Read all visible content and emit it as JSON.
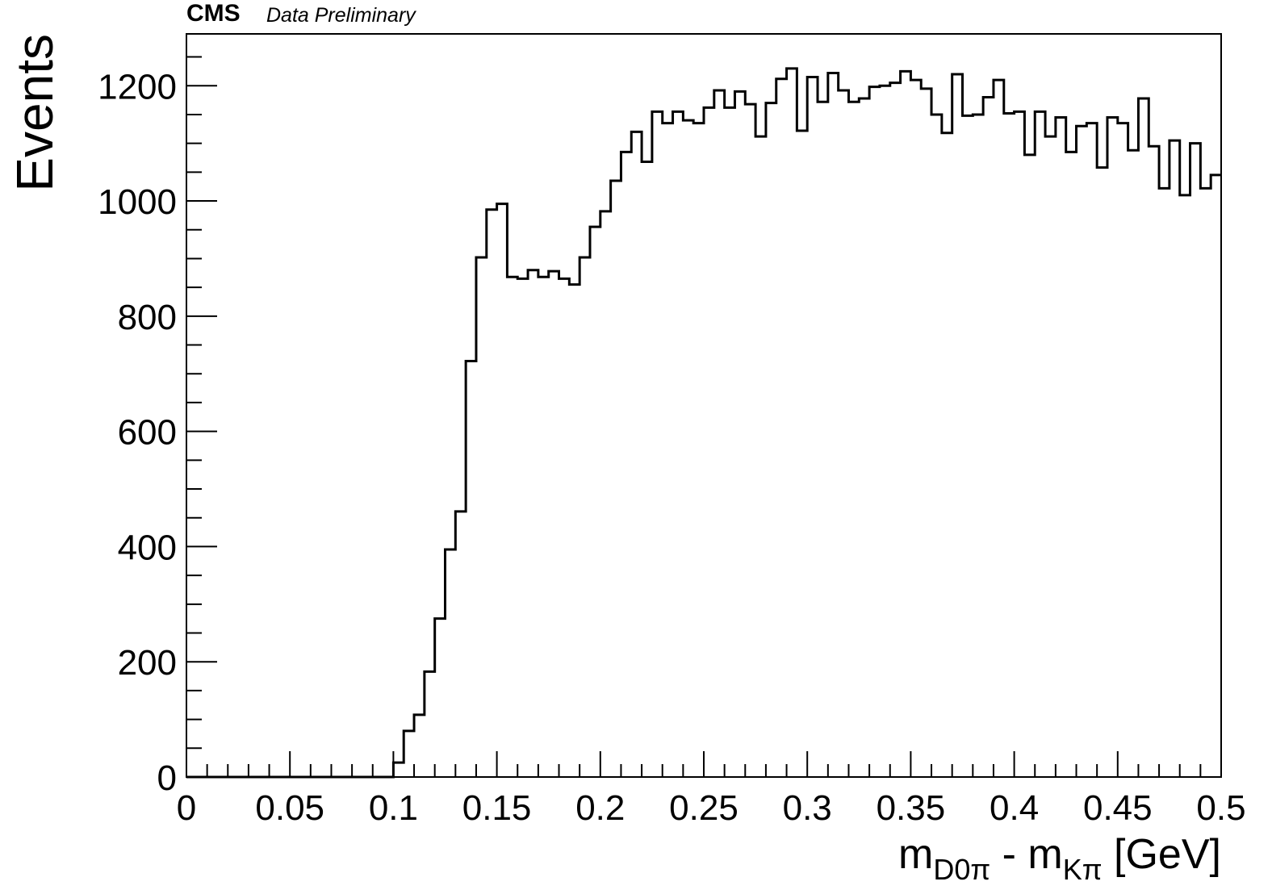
{
  "header": {
    "experiment": "CMS",
    "extra": "Data Preliminary"
  },
  "chart_data": {
    "type": "histogram",
    "xlabel_main": "m",
    "xlabel_sub1": "D0π",
    "xlabel_mid": " - m",
    "xlabel_sub2": "Kπ",
    "xlabel_unit": " [GeV]",
    "ylabel": "Events",
    "xlim": [
      0,
      0.5
    ],
    "ylim": [
      0,
      1290
    ],
    "xticks": [
      0,
      0.05,
      0.1,
      0.15,
      0.2,
      0.25,
      0.3,
      0.35,
      0.4,
      0.45,
      0.5
    ],
    "xtick_labels": [
      "0",
      "0.05",
      "0.1",
      "0.15",
      "0.2",
      "0.25",
      "0.3",
      "0.35",
      "0.4",
      "0.45",
      "0.5"
    ],
    "yticks": [
      0,
      200,
      400,
      600,
      800,
      1000,
      1200
    ],
    "ytick_labels": [
      "0",
      "200",
      "400",
      "600",
      "800",
      "1000",
      "1200"
    ],
    "bin_width": 0.005,
    "bin_start": 0,
    "series": [
      {
        "values": [
          0,
          0,
          0,
          0,
          0,
          0,
          0,
          0,
          0,
          0,
          0,
          0,
          0,
          0,
          0,
          0,
          0,
          0,
          0,
          0,
          25,
          80,
          108,
          183,
          275,
          395,
          461,
          722,
          902,
          985,
          995,
          868,
          865,
          880,
          868,
          878,
          865,
          855,
          902,
          955,
          982,
          1035,
          1085,
          1120,
          1068,
          1155,
          1135,
          1155,
          1140,
          1135,
          1162,
          1192,
          1162,
          1190,
          1168,
          1112,
          1170,
          1212,
          1230,
          1122,
          1215,
          1172,
          1222,
          1192,
          1172,
          1178,
          1198,
          1200,
          1205,
          1225,
          1210,
          1195,
          1150,
          1118,
          1220,
          1148,
          1150,
          1180,
          1210,
          1152,
          1155,
          1080,
          1155,
          1112,
          1145,
          1085,
          1130,
          1135,
          1058,
          1145,
          1135,
          1088,
          1178,
          1095,
          1022,
          1105,
          1010,
          1100,
          1022,
          1045
        ]
      }
    ]
  }
}
